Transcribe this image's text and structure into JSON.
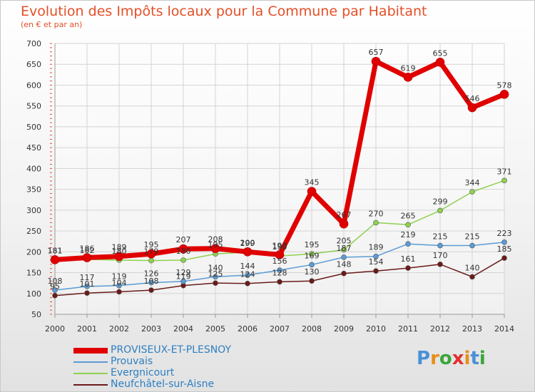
{
  "header": {
    "title": "Evolution des Impôts locaux pour la Commune par Habitant",
    "subtitle": "(en € et par an)"
  },
  "logo": {
    "letters": [
      "P",
      "r",
      "o",
      "x",
      "i",
      "t",
      "i"
    ],
    "colors": [
      "#4a90d9",
      "#e88e1a",
      "#3aa63a",
      "#e33030",
      "#e88e1a",
      "#4a90d9",
      "#3aa63a"
    ]
  },
  "chart_data": {
    "type": "line",
    "x": [
      "2000",
      "2001",
      "2002",
      "2003",
      "2004",
      "2005",
      "2006",
      "2007",
      "2008",
      "2009",
      "2010",
      "2011",
      "2012",
      "2013",
      "2014"
    ],
    "ylim": [
      50,
      700
    ],
    "yticks": [
      50,
      100,
      150,
      200,
      250,
      300,
      350,
      400,
      450,
      500,
      550,
      600,
      650,
      700
    ],
    "grid": true,
    "legend_position": "bottom-left",
    "series": [
      {
        "name": "PROVISEUX-ET-PLESNOY",
        "color": "#e00000",
        "width": 7,
        "values": [
          181,
          186,
          189,
          195,
          207,
          208,
          200,
          193,
          345,
          267,
          657,
          619,
          655,
          546,
          578
        ],
        "labels": [
          "181",
          "186",
          "189",
          "195",
          "207",
          "208",
          "200",
          "193",
          "345",
          "267",
          "657",
          "619",
          "655",
          "546",
          "578"
        ]
      },
      {
        "name": "Prouvais",
        "color": "#5b9bd5",
        "width": 1.5,
        "values": [
          108,
          117,
          119,
          126,
          129,
          140,
          144,
          156,
          169,
          187,
          189,
          219,
          215,
          215,
          223
        ],
        "labels": [
          "108",
          "117",
          "119",
          "126",
          "129",
          "140",
          "144",
          "156",
          "169",
          "187",
          "189",
          "219",
          "215",
          "215",
          "223"
        ]
      },
      {
        "name": "Evergnicourt",
        "color": "#8fd14f",
        "width": 1.5,
        "values": [
          181,
          182,
          180,
          179,
          180,
          195,
          199,
          190,
          195,
          205,
          270,
          265,
          299,
          344,
          371
        ],
        "labels": [
          "181",
          "182",
          "180",
          "179",
          "180",
          "195",
          "199",
          "190",
          "195",
          "205",
          "270",
          "265",
          "299",
          "344",
          "371"
        ]
      },
      {
        "name": "Neufchâtel-sur-Aisne",
        "color": "#6b1a1a",
        "width": 1.5,
        "values": [
          95,
          101,
          104,
          108,
          119,
          125,
          124,
          128,
          130,
          148,
          154,
          161,
          170,
          140,
          185
        ],
        "labels": [
          "95",
          "101",
          "104",
          "108",
          "119",
          "125",
          "124",
          "128",
          "130",
          "148",
          "154",
          "161",
          "170",
          "140",
          "185"
        ]
      }
    ]
  }
}
